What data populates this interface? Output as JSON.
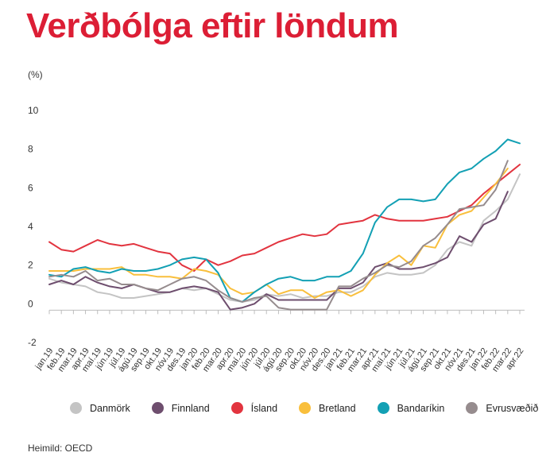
{
  "title": "Verðbólga eftir löndum",
  "source": "Heimild: OECD",
  "colors": {
    "title": "#dc1e35",
    "Danmörk": "#c4c4c4",
    "Finnland": "#6e4e6e",
    "Ísland": "#e2343f",
    "Bretland": "#f9bf3c",
    "Bandaríkin": "#13a0b4",
    "Evrusvæðið": "#968c8e",
    "axis": "#bdbdbd"
  },
  "chart_data": {
    "type": "line",
    "ylabel": "(%)",
    "ylim": [
      -2,
      10
    ],
    "yticks": [
      -2,
      0,
      2,
      4,
      6,
      8,
      10
    ],
    "grid": false,
    "legend": "bottom",
    "x": [
      "jan.19",
      "feb.19",
      "mar.19",
      "apr.19",
      "maí.19",
      "jún.19",
      "júl.19",
      "ágú.19",
      "sep.19",
      "okt.19",
      "nóv.19",
      "des.19",
      "jan.20",
      "feb.20",
      "mar.20",
      "apr.20",
      "maí.20",
      "jún.20",
      "júl.20",
      "ágú.20",
      "sep.20",
      "okt.20",
      "nóv.20",
      "des.20",
      "jan.21",
      "feb.21",
      "mar.21",
      "apr.21",
      "maí.21",
      "jún.21",
      "júl.21",
      "ágú.21",
      "sep.21",
      "okt.21",
      "nóv.21",
      "des.21",
      "jan.22",
      "feb.22",
      "mar.22",
      "apr.22"
    ],
    "series": [
      {
        "name": "Danmörk",
        "values": [
          1.3,
          1.1,
          1.0,
          0.9,
          0.6,
          0.5,
          0.3,
          0.3,
          0.4,
          0.5,
          0.6,
          0.8,
          0.7,
          0.8,
          0.5,
          0.2,
          0.1,
          0.2,
          0.5,
          0.4,
          0.5,
          0.3,
          0.4,
          0.4,
          0.6,
          0.6,
          0.9,
          1.4,
          1.6,
          1.5,
          1.5,
          1.6,
          2.0,
          2.8,
          3.2,
          3.0,
          4.3,
          4.8,
          5.4,
          6.7
        ]
      },
      {
        "name": "Finnland",
        "values": [
          1.0,
          1.2,
          1.0,
          1.4,
          1.1,
          0.9,
          0.8,
          1.0,
          0.8,
          0.6,
          0.6,
          0.8,
          0.9,
          0.8,
          0.6,
          -0.3,
          -0.2,
          0.0,
          0.5,
          0.2,
          0.2,
          0.2,
          0.2,
          0.2,
          0.8,
          0.8,
          1.1,
          1.9,
          2.1,
          1.8,
          1.8,
          1.9,
          2.1,
          2.4,
          3.5,
          3.2,
          4.1,
          4.4,
          5.8,
          null
        ]
      },
      {
        "name": "Ísland",
        "values": [
          3.2,
          2.8,
          2.7,
          3.0,
          3.3,
          3.1,
          3.0,
          3.1,
          2.9,
          2.7,
          2.6,
          2.0,
          1.7,
          2.3,
          2.0,
          2.2,
          2.5,
          2.6,
          2.9,
          3.2,
          3.4,
          3.6,
          3.5,
          3.6,
          4.1,
          4.2,
          4.3,
          4.6,
          4.4,
          4.3,
          4.3,
          4.3,
          4.4,
          4.5,
          4.8,
          5.1,
          5.7,
          6.2,
          6.7,
          7.2
        ]
      },
      {
        "name": "Bretland",
        "values": [
          1.7,
          1.7,
          1.7,
          1.8,
          1.8,
          1.8,
          1.9,
          1.5,
          1.5,
          1.4,
          1.4,
          1.3,
          1.8,
          1.7,
          1.5,
          0.8,
          0.5,
          0.6,
          1.0,
          0.5,
          0.7,
          0.7,
          0.3,
          0.6,
          0.7,
          0.4,
          0.7,
          1.5,
          2.1,
          2.5,
          2.0,
          3.0,
          2.9,
          4.1,
          4.6,
          4.8,
          5.5,
          6.2,
          7.0,
          null
        ]
      },
      {
        "name": "Bandaríkin",
        "values": [
          1.5,
          1.4,
          1.8,
          1.9,
          1.7,
          1.6,
          1.8,
          1.7,
          1.7,
          1.8,
          2.0,
          2.3,
          2.4,
          2.3,
          1.6,
          0.3,
          0.1,
          0.6,
          1.0,
          1.3,
          1.4,
          1.2,
          1.2,
          1.4,
          1.4,
          1.7,
          2.6,
          4.2,
          5.0,
          5.4,
          5.4,
          5.3,
          5.4,
          6.2,
          6.8,
          7.0,
          7.5,
          7.9,
          8.5,
          8.3
        ]
      },
      {
        "name": "Evrusvæðið",
        "values": [
          1.4,
          1.5,
          1.4,
          1.7,
          1.2,
          1.3,
          1.0,
          1.0,
          0.8,
          0.7,
          1.0,
          1.3,
          1.4,
          1.2,
          0.7,
          0.3,
          0.1,
          0.3,
          0.4,
          -0.2,
          -0.3,
          -0.3,
          -0.3,
          -0.3,
          0.9,
          0.9,
          1.3,
          1.6,
          2.0,
          1.9,
          2.2,
          3.0,
          3.4,
          4.1,
          4.9,
          5.0,
          5.1,
          5.9,
          7.4,
          null
        ]
      }
    ]
  }
}
